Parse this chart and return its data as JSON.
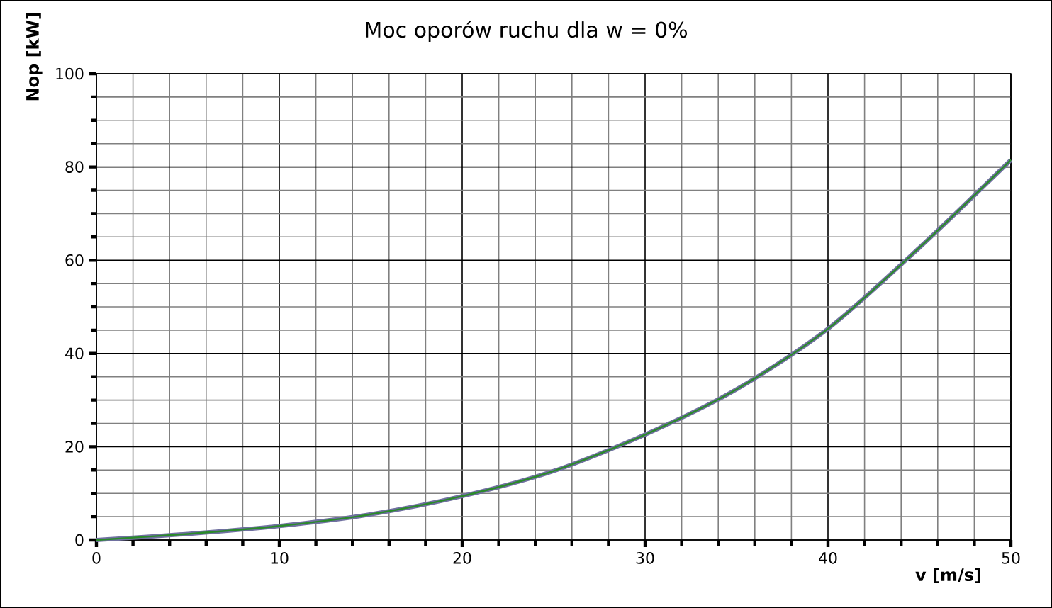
{
  "chart_data": {
    "type": "line",
    "title": "Moc oporów ruchu dla w = 0%",
    "xlabel": "v [m/s]",
    "ylabel": "Nop [kW]",
    "x": [
      0,
      5,
      10,
      15,
      20,
      25,
      30,
      35,
      40,
      45,
      50
    ],
    "series": [
      {
        "color": "#7070a0",
        "values": [
          0,
          1.3,
          3.0,
          5.5,
          9.4,
          14.8,
          22.6,
          32.3,
          45.3,
          62.7,
          81.5
        ]
      },
      {
        "color": "#2a8a2a",
        "values": [
          0,
          1.3,
          3.0,
          5.5,
          9.4,
          14.8,
          22.6,
          32.3,
          45.3,
          62.7,
          81.5
        ]
      }
    ],
    "xlim": [
      0,
      50
    ],
    "ylim": [
      0,
      100
    ],
    "xticks": [
      0,
      10,
      20,
      30,
      40,
      50
    ],
    "yticks": [
      0,
      20,
      40,
      60,
      80,
      100
    ],
    "grid": true,
    "marker": "none",
    "line_style": "solid"
  }
}
